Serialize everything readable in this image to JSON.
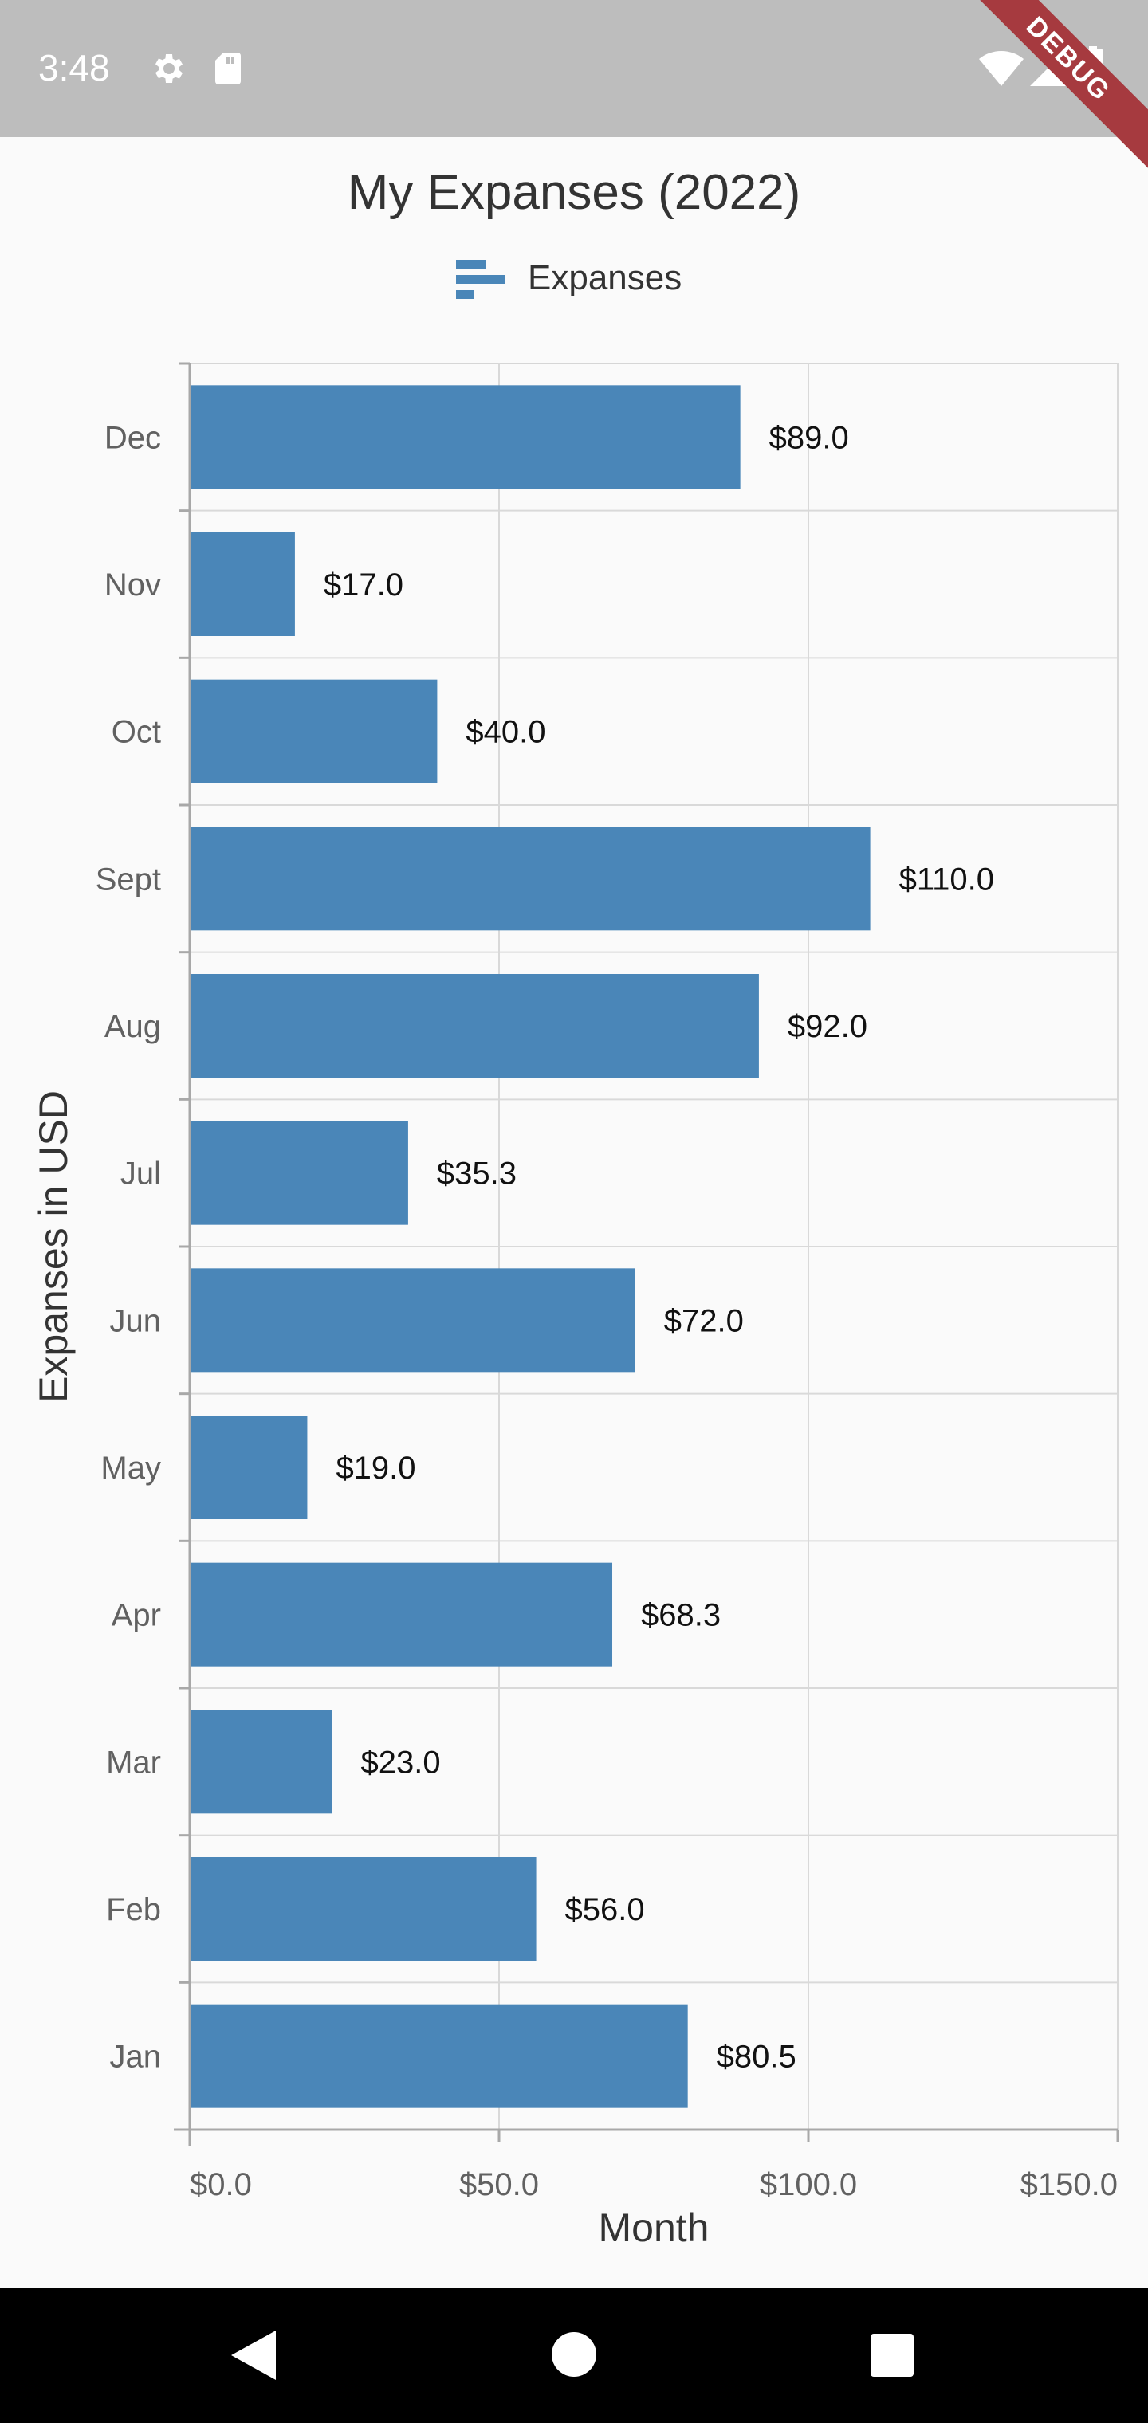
{
  "status_bar": {
    "time": "3:48",
    "icons": [
      "gear-icon",
      "sd-card-icon",
      "wifi-icon",
      "signal-icon",
      "battery-icon"
    ],
    "background": "#bdbdbd"
  },
  "debug_banner": {
    "label": "DEBUG",
    "color": "#a63a3f"
  },
  "chart_data": {
    "type": "bar",
    "orientation": "horizontal",
    "title": "My Expanses (2022)",
    "xlabel": "Month",
    "ylabel": "Expanses in USD",
    "legend": {
      "position": "top-center",
      "entries": [
        "Expanses"
      ]
    },
    "categories": [
      "Jan",
      "Feb",
      "Mar",
      "Apr",
      "May",
      "Jun",
      "Jul",
      "Aug",
      "Sept",
      "Oct",
      "Nov",
      "Dec"
    ],
    "series": [
      {
        "name": "Expanses",
        "color": "#4a86b8",
        "values": [
          80.5,
          56.0,
          23.0,
          68.3,
          19.0,
          72.0,
          35.3,
          92.0,
          110.0,
          40.0,
          17.0,
          89.0
        ],
        "data_labels": [
          "$80.5",
          "$56.0",
          "$23.0",
          "$68.3",
          "$19.0",
          "$72.0",
          "$35.3",
          "$92.0",
          "$110.0",
          "$40.0",
          "$17.0",
          "$89.0"
        ]
      }
    ],
    "value_axis": {
      "min": 0,
      "max": 150,
      "ticks": [
        0,
        50,
        100,
        150
      ],
      "tick_labels": [
        "$0.0",
        "$50.0",
        "$100.0",
        "$150.0"
      ]
    },
    "grid": true
  },
  "nav_bar": {
    "buttons": [
      "back-icon",
      "home-icon",
      "recents-icon"
    ]
  }
}
